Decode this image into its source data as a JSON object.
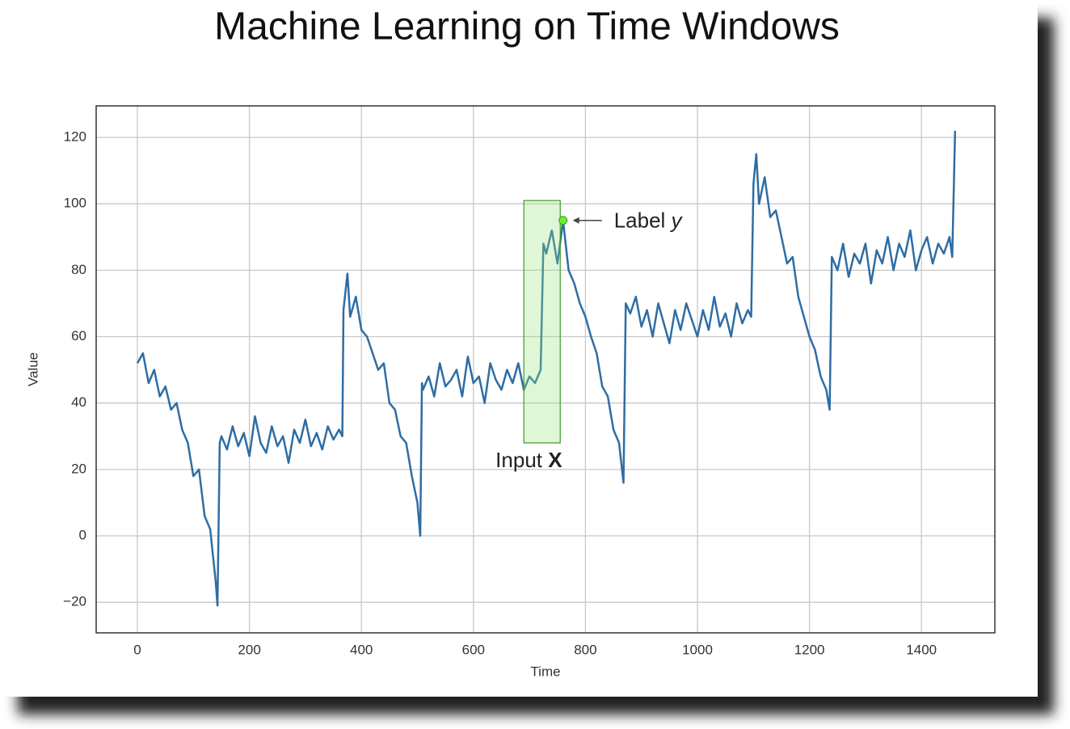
{
  "chart_data": {
    "type": "line",
    "title": "Machine Learning on Time Windows",
    "x_label": "Time",
    "y_label": "Value",
    "x": [
      0,
      10,
      20,
      30,
      40,
      50,
      60,
      70,
      80,
      90,
      100,
      110,
      120,
      130,
      140,
      143,
      147,
      150,
      160,
      170,
      180,
      190,
      200,
      210,
      220,
      230,
      240,
      250,
      260,
      270,
      280,
      290,
      300,
      310,
      320,
      330,
      340,
      350,
      360,
      366,
      368,
      375,
      380,
      390,
      400,
      410,
      420,
      430,
      440,
      450,
      460,
      470,
      480,
      490,
      500,
      505,
      508,
      510,
      520,
      530,
      540,
      550,
      560,
      570,
      580,
      590,
      600,
      610,
      620,
      630,
      640,
      650,
      660,
      670,
      680,
      690,
      700,
      710,
      720,
      725,
      730,
      740,
      750,
      760,
      770,
      780,
      790,
      800,
      810,
      820,
      830,
      840,
      850,
      860,
      868,
      872,
      880,
      890,
      900,
      910,
      920,
      930,
      940,
      950,
      960,
      970,
      980,
      990,
      1000,
      1010,
      1020,
      1030,
      1040,
      1050,
      1060,
      1070,
      1080,
      1090,
      1096,
      1100,
      1105,
      1110,
      1120,
      1130,
      1140,
      1150,
      1160,
      1170,
      1180,
      1190,
      1200,
      1210,
      1220,
      1230,
      1236,
      1240,
      1250,
      1260,
      1270,
      1280,
      1290,
      1300,
      1310,
      1320,
      1330,
      1340,
      1350,
      1360,
      1370,
      1380,
      1390,
      1400,
      1410,
      1420,
      1430,
      1440,
      1450,
      1455,
      1460
    ],
    "values": [
      52,
      55,
      46,
      50,
      42,
      45,
      38,
      40,
      32,
      28,
      18,
      20,
      6,
      2,
      -14,
      -21,
      28,
      30,
      26,
      33,
      27,
      31,
      24,
      36,
      28,
      25,
      33,
      27,
      30,
      22,
      32,
      28,
      35,
      27,
      31,
      26,
      33,
      29,
      32,
      30,
      68,
      79,
      66,
      72,
      62,
      60,
      55,
      50,
      52,
      40,
      38,
      30,
      28,
      18,
      10,
      0,
      46,
      44,
      48,
      42,
      52,
      45,
      47,
      50,
      42,
      54,
      46,
      48,
      40,
      52,
      47,
      44,
      50,
      46,
      52,
      44,
      48,
      46,
      50,
      88,
      85,
      92,
      82,
      95,
      80,
      76,
      70,
      66,
      60,
      55,
      45,
      42,
      32,
      28,
      16,
      70,
      67,
      72,
      63,
      68,
      60,
      70,
      64,
      58,
      68,
      62,
      70,
      65,
      60,
      68,
      62,
      72,
      63,
      67,
      60,
      70,
      64,
      68,
      66,
      106,
      115,
      100,
      108,
      96,
      98,
      90,
      82,
      84,
      72,
      66,
      60,
      56,
      48,
      44,
      38,
      84,
      80,
      88,
      78,
      85,
      82,
      88,
      76,
      86,
      82,
      90,
      80,
      88,
      84,
      92,
      80,
      86,
      90,
      82,
      88,
      85,
      90,
      84,
      122
    ],
    "color": "#2e6da4",
    "xlim": [
      -73.6,
      1531
    ],
    "ylim": [
      -29.2,
      129.5
    ],
    "xticks": [
      0,
      200,
      400,
      600,
      800,
      1000,
      1200,
      1400
    ],
    "yticks": [
      {
        "value": -20,
        "label": "−20"
      },
      0,
      20,
      40,
      60,
      80,
      100,
      120
    ],
    "grid": true,
    "input_window": {
      "x": [
        690,
        755
      ],
      "y": [
        28,
        101
      ],
      "text": "Input ",
      "emphasis": "X"
    },
    "label_point": {
      "x": 760,
      "y": 95,
      "text": "Label ",
      "emphasis": "y"
    }
  }
}
